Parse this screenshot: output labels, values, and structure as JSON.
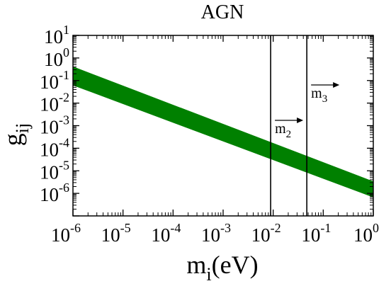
{
  "chart_data": {
    "type": "area",
    "title": "AGN",
    "xlabel": {
      "base": "m",
      "sub": "i",
      "rest": "(eV)"
    },
    "ylabel": {
      "base": "g",
      "sub": "ij"
    },
    "xscale": "log",
    "yscale": "log",
    "xlim": [
      1e-06,
      1
    ],
    "ylim": [
      1e-07,
      10
    ],
    "xticks": [
      {
        "value": 1e-06,
        "base": "10",
        "exp": "-6"
      },
      {
        "value": 1e-05,
        "base": "10",
        "exp": "-5"
      },
      {
        "value": 0.0001,
        "base": "10",
        "exp": "-4"
      },
      {
        "value": 0.001,
        "base": "10",
        "exp": "-3"
      },
      {
        "value": 0.01,
        "base": "10",
        "exp": "-2"
      },
      {
        "value": 0.1,
        "base": "10",
        "exp": "-1"
      },
      {
        "value": 1,
        "base": "10",
        "exp": "0"
      }
    ],
    "yticks": [
      {
        "value": 1e-06,
        "base": "10",
        "exp": "-6"
      },
      {
        "value": 1e-05,
        "base": "10",
        "exp": "-5"
      },
      {
        "value": 0.0001,
        "base": "10",
        "exp": "-4"
      },
      {
        "value": 0.001,
        "base": "10",
        "exp": "-3"
      },
      {
        "value": 0.01,
        "base": "10",
        "exp": "-2"
      },
      {
        "value": 0.1,
        "base": "10",
        "exp": "-1"
      },
      {
        "value": 1,
        "base": "10",
        "exp": "0"
      },
      {
        "value": 10,
        "base": "10",
        "exp": "1"
      }
    ],
    "band": {
      "color": "#008000",
      "x": [
        1e-06,
        1
      ],
      "y_upper": [
        0.42,
        3.4e-06
      ],
      "y_lower": [
        0.061,
        6.6e-07
      ]
    },
    "vlines": [
      {
        "x": 0.0089,
        "label_base": "m",
        "label_sub": "2",
        "arrow": "right"
      },
      {
        "x": 0.047,
        "label_base": "m",
        "label_sub": "3",
        "arrow": "right"
      }
    ],
    "grid": false,
    "legend": "none"
  }
}
